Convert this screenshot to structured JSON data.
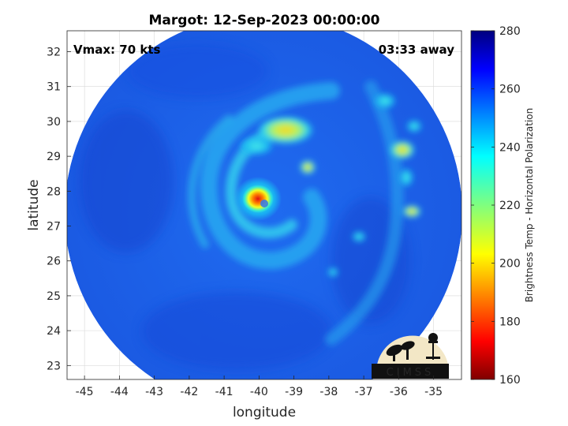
{
  "chart_data": {
    "type": "heatmap",
    "title": "Margot: 12-Sep-2023 00:00:00",
    "xlabel": "longitude",
    "ylabel": "latitude",
    "xlim": [
      -45.5,
      -34.2
    ],
    "ylim": [
      22.6,
      32.6
    ],
    "x_ticks": [
      -45,
      -44,
      -43,
      -42,
      -41,
      -40,
      -39,
      -38,
      -37,
      -36,
      -35
    ],
    "x_tick_labels": [
      "-45",
      "-44",
      "-43",
      "-42",
      "-41",
      "-40",
      "-39",
      "-38",
      "-37",
      "-36",
      "-35"
    ],
    "y_ticks": [
      23,
      24,
      25,
      26,
      27,
      28,
      29,
      30,
      31,
      32
    ],
    "y_tick_labels": [
      "23",
      "24",
      "25",
      "26",
      "27",
      "28",
      "29",
      "30",
      "31",
      "32"
    ],
    "grid": true,
    "annotations": {
      "vmax": "Vmax: 70 kts",
      "time_offset": "03:33 away"
    },
    "colorbar": {
      "label": "Brightness Temp - Horizontal Polarization",
      "range": [
        160,
        280
      ],
      "ticks": [
        160,
        180,
        200,
        220,
        240,
        260,
        280
      ],
      "tick_labels": [
        "160",
        "180",
        "200",
        "220",
        "240",
        "260",
        "280"
      ],
      "colormap": "jet"
    },
    "storm_center": {
      "lon": -40.0,
      "lat": 27.6
    },
    "swath_center": {
      "lon": -39.9,
      "lat": 27.3
    },
    "features": [
      {
        "name": "eyewall",
        "lon": -40.0,
        "lat": 27.6,
        "value": 172
      },
      {
        "name": "inner-band-north",
        "lon": -39.5,
        "lat": 29.5,
        "value": 222
      },
      {
        "name": "band-cell-1",
        "lon": -38.6,
        "lat": 28.6,
        "value": 205
      },
      {
        "name": "band-cell-2",
        "lon": -35.9,
        "lat": 28.8,
        "value": 220
      },
      {
        "name": "band-cell-3",
        "lon": -35.7,
        "lat": 27.2,
        "value": 225
      }
    ]
  },
  "logo": {
    "text": "CIMSS"
  },
  "colors": {
    "background": "#ffffff",
    "map_base": "#1f5fe8",
    "grid": "#d9d9d9"
  }
}
